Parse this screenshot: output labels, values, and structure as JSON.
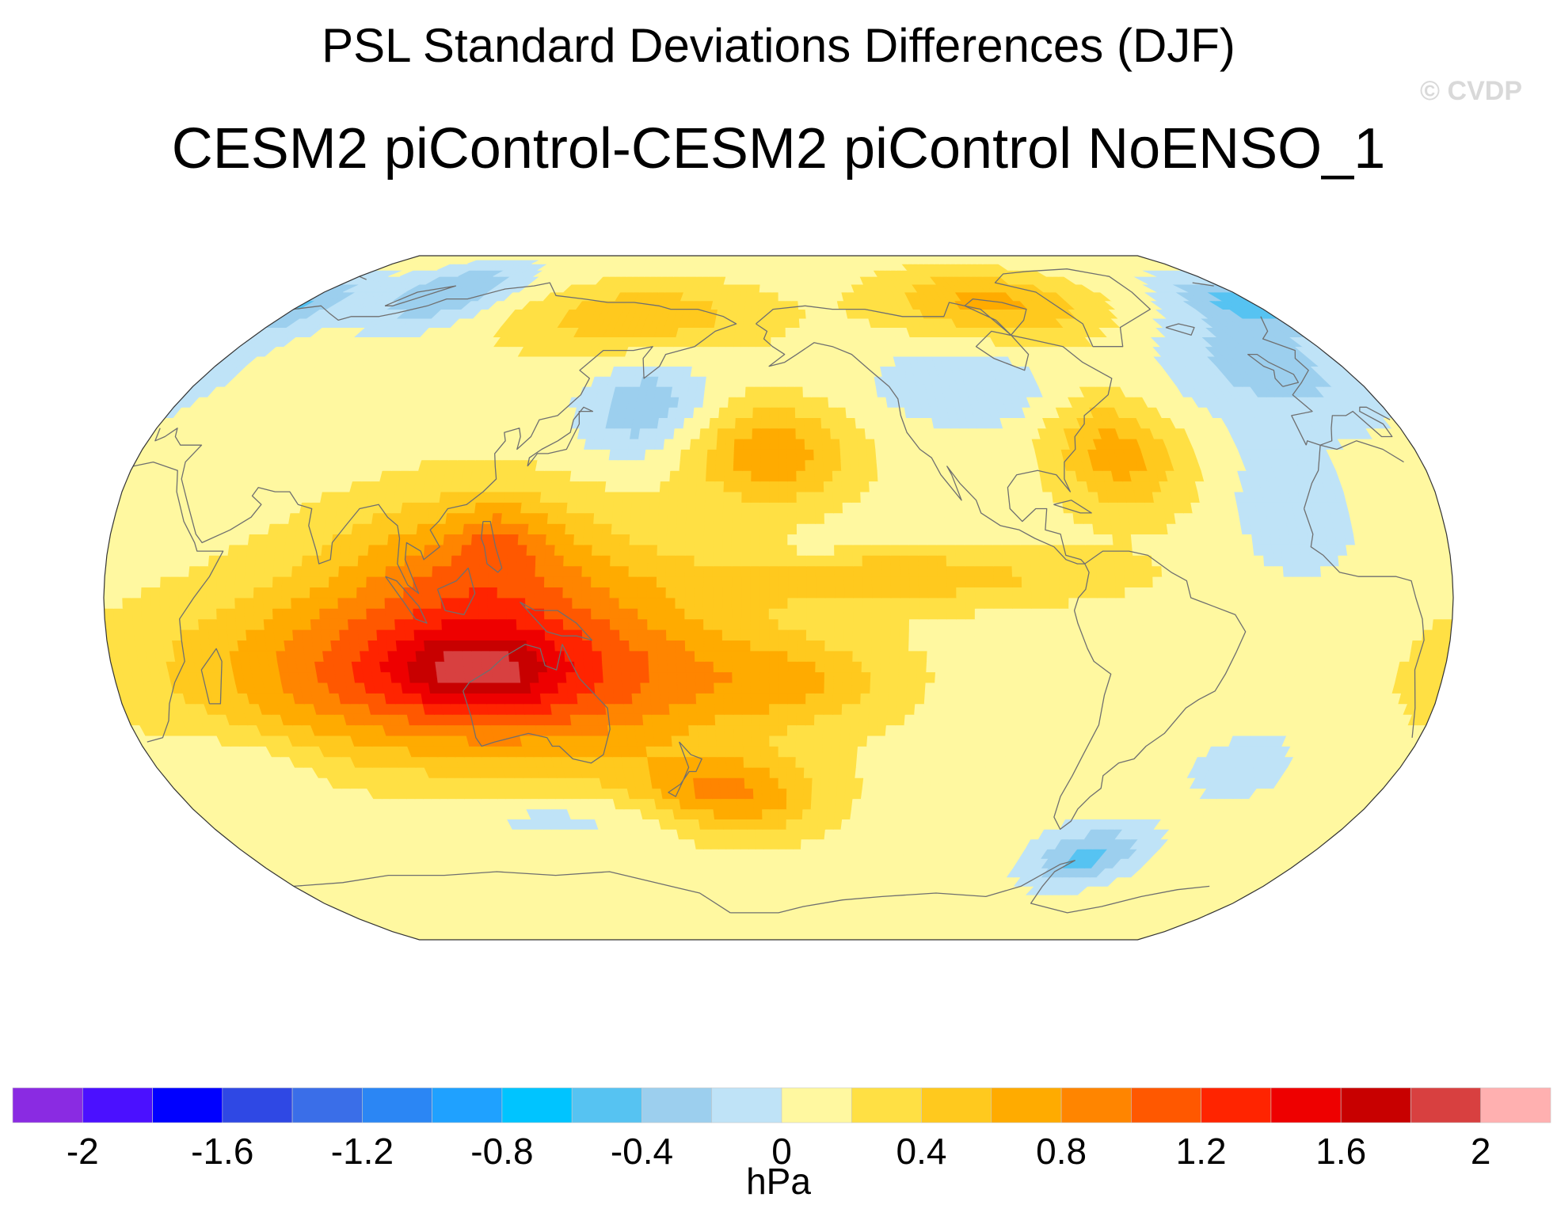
{
  "chart_data": {
    "type": "filled-contour-map",
    "title": "PSL Standard Deviations Differences (DJF)",
    "subtitle": "CESM2 piControl-CESM2 piControl NoENSO_1",
    "watermark": "© CVDP",
    "projection": "Robinson, Pacific-centered",
    "units": "hPa",
    "colorbar": {
      "min": -2.2,
      "max": 2.2,
      "step": 0.2,
      "colors": [
        "#8a2be2",
        "#4b10ff",
        "#0000ff",
        "#2f48e4",
        "#3a6ee8",
        "#2b86f4",
        "#1fa1ff",
        "#00c4ff",
        "#56c3f2",
        "#9ccfee",
        "#bfe3f7",
        "#fff8a0",
        "#ffe044",
        "#ffc91e",
        "#ffab00",
        "#ff8500",
        "#ff5800",
        "#ff2400",
        "#ee0000",
        "#c80000",
        "#d84040",
        "#ffb0b0"
      ],
      "tick_values": [
        -2,
        -1.6,
        -1.2,
        -0.8,
        -0.4,
        0,
        0.4,
        0.8,
        1.2,
        1.6,
        2
      ],
      "tick_labels": [
        "-2",
        "-1.6",
        "-1.2",
        "-0.8",
        "-0.4",
        "0",
        "0.4",
        "0.8",
        "1.2",
        "1.6",
        "2"
      ]
    },
    "background_value": 0.1,
    "features": [
      {
        "name": "maritime continent / australia maximum",
        "lon": 120,
        "lat": -18,
        "value": 1.3,
        "lon_radius": 70,
        "lat_radius": 20
      },
      {
        "name": "western australia peak",
        "lon": 118,
        "lat": -17,
        "value": 0.5,
        "lon_radius": 20,
        "lat_radius": 8
      },
      {
        "name": "indian ocean / indonesia band",
        "lon": 120,
        "lat": 8,
        "value": 0.65,
        "lon_radius": 40,
        "lat_radius": 18
      },
      {
        "name": "south china sea peak",
        "lon": 125,
        "lat": 14,
        "value": 0.3,
        "lon_radius": 12,
        "lat_radius": 8
      },
      {
        "name": "north pacific high",
        "lon": -162,
        "lat": 34,
        "value": 0.65,
        "lon_radius": 22,
        "lat_radius": 12
      },
      {
        "name": "northwest atlantic high",
        "lon": -65,
        "lat": 34,
        "value": 0.6,
        "lon_radius": 18,
        "lat_radius": 14
      },
      {
        "name": "arctic canada",
        "lon": -80,
        "lat": 72,
        "value": 0.55,
        "lon_radius": 40,
        "lat_radius": 10
      },
      {
        "name": "east siberia",
        "lon": 150,
        "lat": 68,
        "value": 0.45,
        "lon_radius": 45,
        "lat_radius": 10
      },
      {
        "name": "equatorial east pacific",
        "lon": -125,
        "lat": 5,
        "value": 0.4,
        "lon_radius": 55,
        "lat_radius": 7
      },
      {
        "name": "south pacific",
        "lon": -170,
        "lat": -48,
        "value": 0.5,
        "lon_radius": 25,
        "lat_radius": 10
      },
      {
        "name": "south central pacific",
        "lon": -155,
        "lat": -20,
        "value": 0.3,
        "lon_radius": 25,
        "lat_radius": 9
      },
      {
        "name": "southern ocean east of australia",
        "lon": 175,
        "lat": -45,
        "value": 0.3,
        "lon_radius": 25,
        "lat_radius": 8
      },
      {
        "name": "north pacific kamchatka low",
        "lon": 160,
        "lat": 45,
        "value": -0.45,
        "lon_radius": 18,
        "lat_radius": 12
      },
      {
        "name": "canada interior low",
        "lon": -100,
        "lat": 50,
        "value": -0.3,
        "lon_radius": 30,
        "lat_radius": 10
      },
      {
        "name": "north atlantic / europe low",
        "lon": -5,
        "lat": 55,
        "value": -0.4,
        "lon_radius": 30,
        "lat_radius": 15
      },
      {
        "name": "scandinavia low",
        "lon": 15,
        "lat": 72,
        "value": -0.5,
        "lon_radius": 20,
        "lat_radius": 8
      },
      {
        "name": "west siberia low",
        "lon": 70,
        "lat": 75,
        "value": -0.5,
        "lon_radius": 25,
        "lat_radius": 10
      },
      {
        "name": "drake passage low",
        "lon": -55,
        "lat": -62,
        "value": -0.55,
        "lon_radius": 18,
        "lat_radius": 8
      },
      {
        "name": "southern ocean south of australia",
        "lon": 135,
        "lat": -52,
        "value": -0.2,
        "lon_radius": 45,
        "lat_radius": 6
      },
      {
        "name": "south atlantic low",
        "lon": -25,
        "lat": -40,
        "value": -0.25,
        "lon_radius": 15,
        "lat_radius": 8
      },
      {
        "name": "africa / east atlantic low",
        "lon": -20,
        "lat": 20,
        "value": -0.3,
        "lon_radius": 15,
        "lat_radius": 15
      },
      {
        "name": "indian ocean low",
        "lon": 45,
        "lat": -40,
        "value": -0.2,
        "lon_radius": 20,
        "lat_radius": 8
      },
      {
        "name": "tropical pacific low",
        "lon": -150,
        "lat": 10,
        "value": -0.15,
        "lon_radius": 8,
        "lat_radius": 4
      }
    ]
  }
}
